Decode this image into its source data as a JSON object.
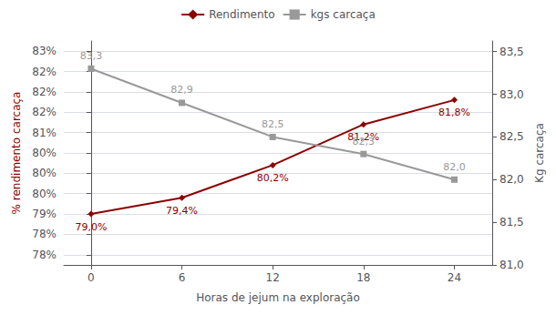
{
  "chart_data": {
    "type": "line",
    "xlabel": "Horas de jejum na exploração",
    "ylabel": "% rendimento carcaça",
    "y2label": "Kg carcaça",
    "x": [
      0,
      6,
      12,
      18,
      24
    ],
    "xlim": [
      -1.8,
      26.5
    ],
    "xticks": [
      0,
      6,
      12,
      18,
      24
    ],
    "ylim": [
      77.75,
      83.25
    ],
    "yticks": [
      {
        "value": 78.0,
        "label": "78%"
      },
      {
        "value": 78.5,
        "label": "78%"
      },
      {
        "value": 79.0,
        "label": "79%"
      },
      {
        "value": 79.5,
        "label": "80%"
      },
      {
        "value": 80.0,
        "label": "80%"
      },
      {
        "value": 80.5,
        "label": "80%"
      },
      {
        "value": 81.0,
        "label": "81%"
      },
      {
        "value": 81.5,
        "label": "82%"
      },
      {
        "value": 82.0,
        "label": "82%"
      },
      {
        "value": 82.5,
        "label": "82%"
      },
      {
        "value": 83.0,
        "label": "83%"
      }
    ],
    "y2lim": [
      81.0,
      83.625
    ],
    "y2ticks": [
      {
        "value": 81.0,
        "label": "81,0"
      },
      {
        "value": 81.5,
        "label": "81,5"
      },
      {
        "value": 82.0,
        "label": "82,0"
      },
      {
        "value": 82.5,
        "label": "82,5"
      },
      {
        "value": 83.0,
        "label": "83,0"
      },
      {
        "value": 83.5,
        "label": "83,5"
      }
    ],
    "grid": true,
    "legend": "top",
    "data_labels": true,
    "series": [
      {
        "name": "Rendimento",
        "color": "#8B0000",
        "marker": "diamond",
        "axis": "y",
        "values": [
          79.0,
          79.4,
          80.2,
          81.2,
          81.8
        ],
        "value_labels": [
          "79,0%",
          "79,4%",
          "80,2%",
          "81,2%",
          "81,8%"
        ]
      },
      {
        "name": "kgs carcaça",
        "color": "#999999",
        "marker": "square",
        "axis": "y2",
        "values": [
          83.3,
          82.9,
          82.5,
          82.3,
          82.0
        ],
        "value_labels": [
          "83,3",
          "82,9",
          "82,5",
          "82,3",
          "82,0"
        ]
      }
    ]
  }
}
